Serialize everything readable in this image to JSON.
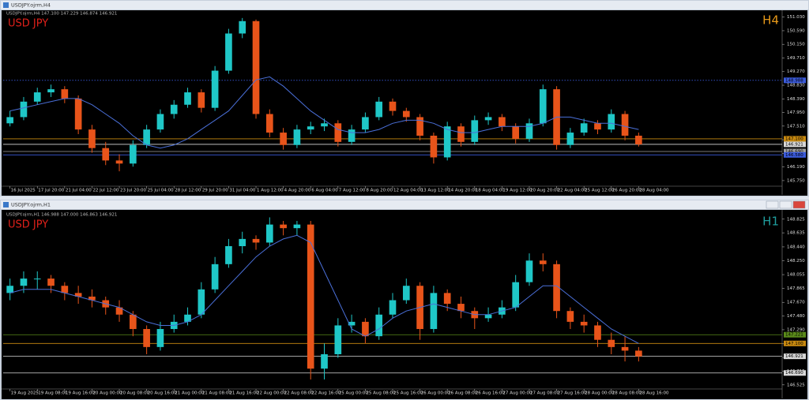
{
  "chart_data": [
    {
      "type": "candlestick",
      "window_title": "USDJPY.ojrm,H4",
      "header": "USDJPY.ojrm,H4  147.100 147.229 146.874 146.921",
      "label": "USD JPY",
      "timeframe": "H4",
      "timeframe_color": "#e89a1a",
      "up_color": "#1fc7c7",
      "down_color": "#e8541a",
      "ma_color": "#4a6fd8",
      "xlim": [
        -0.5,
        56.5
      ],
      "ylim": [
        145.62,
        151.2
      ],
      "yticks": [
        {
          "value": 151.03,
          "label": "151.030"
        },
        {
          "value": 150.59,
          "label": "150.590"
        },
        {
          "value": 150.15,
          "label": "150.150"
        },
        {
          "value": 149.71,
          "label": "149.710"
        },
        {
          "value": 149.27,
          "label": "149.270"
        },
        {
          "value": 148.83,
          "label": "148.830"
        },
        {
          "value": 148.39,
          "label": "148.390"
        },
        {
          "value": 147.95,
          "label": "147.950"
        },
        {
          "value": 147.51,
          "label": "147.510"
        },
        {
          "value": 147.07,
          "label": "147.070"
        },
        {
          "value": 146.63,
          "label": "146.630"
        },
        {
          "value": 146.19,
          "label": "146.190"
        },
        {
          "value": 145.75,
          "label": "145.750"
        }
      ],
      "xticks": [
        {
          "value": 0,
          "label": "16 Jul 2025"
        },
        {
          "value": 2,
          "label": "17 Jul 20:00"
        },
        {
          "value": 4,
          "label": "21 Jul 04:00"
        },
        {
          "value": 6,
          "label": "22 Jul 12:00"
        },
        {
          "value": 8,
          "label": "23 Jul 20:00"
        },
        {
          "value": 10,
          "label": "25 Jul 04:00"
        },
        {
          "value": 12,
          "label": "28 Jul 12:00"
        },
        {
          "value": 14,
          "label": "29 Jul 20:00"
        },
        {
          "value": 16,
          "label": "31 Jul 04:00"
        },
        {
          "value": 18,
          "label": "1 Aug 12:00"
        },
        {
          "value": 20,
          "label": "4 Aug 20:00"
        },
        {
          "value": 22,
          "label": "6 Aug 04:00"
        },
        {
          "value": 24,
          "label": "7 Aug 12:00"
        },
        {
          "value": 26,
          "label": "8 Aug 20:00"
        },
        {
          "value": 28,
          "label": "12 Aug 04:00"
        },
        {
          "value": 30,
          "label": "13 Aug 12:00"
        },
        {
          "value": 32,
          "label": "14 Aug 20:00"
        },
        {
          "value": 34,
          "label": "18 Aug 04:00"
        },
        {
          "value": 36,
          "label": "19 Aug 12:00"
        },
        {
          "value": 38,
          "label": "20 Aug 20:00"
        },
        {
          "value": 40,
          "label": "22 Aug 04:00"
        },
        {
          "value": 42,
          "label": "25 Aug 12:00"
        },
        {
          "value": 44,
          "label": "26 Aug 20:00"
        },
        {
          "value": 46,
          "label": "28 Aug 04:00"
        }
      ],
      "levels": [
        {
          "value": 148.988,
          "label": "148.988",
          "color": "#3b5bdb",
          "style": "dotted"
        },
        {
          "value": 147.1,
          "label": "147.100",
          "color": "#c98a10",
          "style": "solid"
        },
        {
          "value": 146.921,
          "label": "146.921",
          "color": "#d8d8d8",
          "style": "solid"
        },
        {
          "value": 146.69,
          "label": "146.690",
          "color": "#a0a0a0",
          "style": "solid"
        },
        {
          "value": 146.58,
          "label": "146.580",
          "color": "#3b5bdb",
          "style": "solid"
        }
      ],
      "candles": [
        [
          147.6,
          148.0,
          147.5,
          147.8
        ],
        [
          147.8,
          148.45,
          147.7,
          148.3
        ],
        [
          148.3,
          148.75,
          148.2,
          148.6
        ],
        [
          148.6,
          148.85,
          148.45,
          148.7
        ],
        [
          148.7,
          148.8,
          148.25,
          148.4
        ],
        [
          148.4,
          148.5,
          147.25,
          147.4
        ],
        [
          147.4,
          147.55,
          146.65,
          146.8
        ],
        [
          146.8,
          147.0,
          146.25,
          146.4
        ],
        [
          146.4,
          146.6,
          146.05,
          146.3
        ],
        [
          146.3,
          147.05,
          146.2,
          146.9
        ],
        [
          146.9,
          147.55,
          146.8,
          147.4
        ],
        [
          147.4,
          148.05,
          147.3,
          147.9
        ],
        [
          147.9,
          148.35,
          147.75,
          148.2
        ],
        [
          148.2,
          148.75,
          148.1,
          148.6
        ],
        [
          148.6,
          148.7,
          147.95,
          148.1
        ],
        [
          148.1,
          149.45,
          148.0,
          149.3
        ],
        [
          149.3,
          150.65,
          149.2,
          150.5
        ],
        [
          150.5,
          151.0,
          150.35,
          150.9
        ],
        [
          150.9,
          150.95,
          147.75,
          147.9
        ],
        [
          147.9,
          148.05,
          147.15,
          147.3
        ],
        [
          147.3,
          147.45,
          146.75,
          146.9
        ],
        [
          146.9,
          147.55,
          146.8,
          147.4
        ],
        [
          147.4,
          147.65,
          147.25,
          147.5
        ],
        [
          147.5,
          147.75,
          147.35,
          147.6
        ],
        [
          147.6,
          147.7,
          146.85,
          147.0
        ],
        [
          147.0,
          147.55,
          146.9,
          147.4
        ],
        [
          147.4,
          147.95,
          147.3,
          147.8
        ],
        [
          147.8,
          148.45,
          147.7,
          148.3
        ],
        [
          148.3,
          148.4,
          147.85,
          148.0
        ],
        [
          148.0,
          148.1,
          147.65,
          147.8
        ],
        [
          147.8,
          147.9,
          147.05,
          147.2
        ],
        [
          147.2,
          147.3,
          146.3,
          146.5
        ],
        [
          146.5,
          147.65,
          146.4,
          147.5
        ],
        [
          147.5,
          147.6,
          146.85,
          147.0
        ],
        [
          147.0,
          147.85,
          146.9,
          147.7
        ],
        [
          147.7,
          147.95,
          147.55,
          147.8
        ],
        [
          147.8,
          147.9,
          147.35,
          147.5
        ],
        [
          147.5,
          147.6,
          146.95,
          147.1
        ],
        [
          147.1,
          147.75,
          147.0,
          147.6
        ],
        [
          147.6,
          148.85,
          147.5,
          148.7
        ],
        [
          148.7,
          148.8,
          146.75,
          146.9
        ],
        [
          146.9,
          147.45,
          146.8,
          147.3
        ],
        [
          147.3,
          147.75,
          147.2,
          147.6
        ],
        [
          147.6,
          147.7,
          147.25,
          147.4
        ],
        [
          147.4,
          148.05,
          147.3,
          147.9
        ],
        [
          147.9,
          148.0,
          147.05,
          147.2
        ],
        [
          147.2,
          147.3,
          146.85,
          146.92
        ]
      ],
      "ma": [
        148.0,
        148.1,
        148.2,
        148.3,
        148.4,
        148.4,
        148.2,
        147.9,
        147.6,
        147.2,
        146.9,
        146.8,
        146.9,
        147.1,
        147.4,
        147.7,
        148.0,
        148.5,
        149.0,
        149.1,
        148.8,
        148.4,
        148.0,
        147.7,
        147.4,
        147.3,
        147.3,
        147.4,
        147.6,
        147.7,
        147.7,
        147.6,
        147.4,
        147.3,
        147.3,
        147.4,
        147.5,
        147.5,
        147.5,
        147.6,
        147.8,
        147.8,
        147.7,
        147.6,
        147.6,
        147.5,
        147.4
      ]
    },
    {
      "type": "candlestick",
      "window_title": "USDJPY.ojrm,H1",
      "header": "USDJPY.ojrm,H1  146.988 147.000 146.863 146.921",
      "label": "USD JPY",
      "timeframe": "H1",
      "timeframe_color": "#1f9e9e",
      "up_color": "#1fc7c7",
      "down_color": "#e8541a",
      "ma_color": "#4a6fd8",
      "xlim": [
        -0.5,
        56.5
      ],
      "ylim": [
        146.49,
        148.91
      ],
      "yticks": [
        {
          "value": 148.825,
          "label": "148.825"
        },
        {
          "value": 148.635,
          "label": "148.635"
        },
        {
          "value": 148.44,
          "label": "148.440"
        },
        {
          "value": 148.25,
          "label": "148.250"
        },
        {
          "value": 148.055,
          "label": "148.055"
        },
        {
          "value": 147.865,
          "label": "147.865"
        },
        {
          "value": 147.67,
          "label": "147.670"
        },
        {
          "value": 147.48,
          "label": "147.480"
        },
        {
          "value": 147.29,
          "label": "147.290"
        },
        {
          "value": 147.095,
          "label": "147.095"
        },
        {
          "value": 146.905,
          "label": "146.905"
        },
        {
          "value": 146.715,
          "label": "146.715"
        },
        {
          "value": 146.525,
          "label": "146.525"
        }
      ],
      "xticks": [
        {
          "value": 0,
          "label": "19 Aug 2025"
        },
        {
          "value": 2,
          "label": "19 Aug 08:00"
        },
        {
          "value": 4,
          "label": "19 Aug 16:00"
        },
        {
          "value": 6,
          "label": "20 Aug 00:00"
        },
        {
          "value": 8,
          "label": "20 Aug 08:00"
        },
        {
          "value": 10,
          "label": "20 Aug 16:00"
        },
        {
          "value": 12,
          "label": "21 Aug 00:00"
        },
        {
          "value": 14,
          "label": "21 Aug 08:00"
        },
        {
          "value": 16,
          "label": "21 Aug 16:00"
        },
        {
          "value": 18,
          "label": "22 Aug 00:00"
        },
        {
          "value": 20,
          "label": "22 Aug 08:00"
        },
        {
          "value": 22,
          "label": "22 Aug 16:00"
        },
        {
          "value": 24,
          "label": "25 Aug 00:00"
        },
        {
          "value": 26,
          "label": "25 Aug 08:00"
        },
        {
          "value": 28,
          "label": "25 Aug 16:00"
        },
        {
          "value": 30,
          "label": "26 Aug 00:00"
        },
        {
          "value": 32,
          "label": "26 Aug 08:00"
        },
        {
          "value": 34,
          "label": "26 Aug 16:00"
        },
        {
          "value": 36,
          "label": "27 Aug 00:00"
        },
        {
          "value": 38,
          "label": "27 Aug 08:00"
        },
        {
          "value": 40,
          "label": "27 Aug 16:00"
        },
        {
          "value": 42,
          "label": "28 Aug 00:00"
        },
        {
          "value": 44,
          "label": "28 Aug 08:00"
        },
        {
          "value": 46,
          "label": "28 Aug 16:00"
        }
      ],
      "levels": [
        {
          "value": 147.221,
          "label": "147.221",
          "color": "#5a8a1a",
          "style": "solid"
        },
        {
          "value": 147.1,
          "label": "147.100",
          "color": "#c98a10",
          "style": "solid"
        },
        {
          "value": 146.921,
          "label": "146.921",
          "color": "#d8d8d8",
          "style": "solid"
        },
        {
          "value": 146.69,
          "label": "146.690",
          "color": "#d8d8d8",
          "style": "solid"
        }
      ],
      "candles": [
        [
          147.8,
          148.0,
          147.7,
          147.9
        ],
        [
          147.9,
          148.1,
          147.8,
          148.0
        ],
        [
          148.0,
          148.1,
          147.85,
          148.0
        ],
        [
          148.0,
          148.05,
          147.8,
          147.9
        ],
        [
          147.9,
          147.95,
          147.7,
          147.8
        ],
        [
          147.8,
          147.9,
          147.65,
          147.75
        ],
        [
          147.75,
          147.85,
          147.6,
          147.7
        ],
        [
          147.7,
          147.75,
          147.5,
          147.6
        ],
        [
          147.6,
          147.7,
          147.4,
          147.5
        ],
        [
          147.5,
          147.55,
          147.2,
          147.3
        ],
        [
          147.3,
          147.35,
          146.95,
          147.05
        ],
        [
          147.05,
          147.4,
          147.0,
          147.3
        ],
        [
          147.3,
          147.5,
          147.25,
          147.4
        ],
        [
          147.4,
          147.6,
          147.35,
          147.5
        ],
        [
          147.5,
          147.95,
          147.45,
          147.85
        ],
        [
          147.85,
          148.3,
          147.8,
          148.2
        ],
        [
          148.2,
          148.55,
          148.15,
          148.45
        ],
        [
          148.45,
          148.65,
          148.35,
          148.55
        ],
        [
          148.55,
          148.6,
          148.4,
          148.5
        ],
        [
          148.5,
          148.85,
          148.45,
          148.75
        ],
        [
          148.75,
          148.8,
          148.6,
          148.7
        ],
        [
          148.7,
          148.8,
          148.6,
          148.75
        ],
        [
          148.75,
          148.8,
          146.6,
          146.75
        ],
        [
          146.75,
          147.1,
          146.6,
          146.95
        ],
        [
          146.95,
          147.45,
          146.9,
          147.35
        ],
        [
          147.35,
          147.5,
          147.25,
          147.4
        ],
        [
          147.4,
          147.45,
          147.1,
          147.2
        ],
        [
          147.2,
          147.6,
          147.15,
          147.5
        ],
        [
          147.5,
          147.8,
          147.45,
          147.7
        ],
        [
          147.7,
          148.0,
          147.65,
          147.9
        ],
        [
          147.9,
          147.95,
          147.15,
          147.3
        ],
        [
          147.3,
          147.9,
          147.25,
          147.8
        ],
        [
          147.8,
          147.85,
          147.55,
          147.65
        ],
        [
          147.65,
          147.75,
          147.45,
          147.55
        ],
        [
          147.55,
          147.6,
          147.3,
          147.45
        ],
        [
          147.45,
          147.6,
          147.4,
          147.5
        ],
        [
          147.5,
          147.7,
          147.45,
          147.6
        ],
        [
          147.6,
          148.05,
          147.55,
          147.95
        ],
        [
          147.95,
          148.35,
          147.9,
          148.25
        ],
        [
          148.25,
          148.35,
          148.1,
          148.2
        ],
        [
          148.2,
          148.25,
          147.45,
          147.55
        ],
        [
          147.55,
          147.6,
          147.3,
          147.4
        ],
        [
          147.4,
          147.5,
          147.25,
          147.35
        ],
        [
          147.35,
          147.4,
          147.05,
          147.15
        ],
        [
          147.15,
          147.25,
          146.95,
          147.05
        ],
        [
          147.05,
          147.2,
          146.85,
          147.0
        ],
        [
          147.0,
          147.05,
          146.85,
          146.92
        ]
      ],
      "ma": [
        147.8,
        147.85,
        147.85,
        147.85,
        147.8,
        147.75,
        147.7,
        147.65,
        147.6,
        147.5,
        147.4,
        147.35,
        147.35,
        147.4,
        147.5,
        147.7,
        147.9,
        148.1,
        148.3,
        148.45,
        148.55,
        148.6,
        148.5,
        148.1,
        147.7,
        147.3,
        147.2,
        147.3,
        147.45,
        147.55,
        147.6,
        147.65,
        147.6,
        147.55,
        147.5,
        147.5,
        147.55,
        147.6,
        147.75,
        147.9,
        147.9,
        147.75,
        147.6,
        147.45,
        147.3,
        147.2,
        147.1
      ]
    }
  ]
}
